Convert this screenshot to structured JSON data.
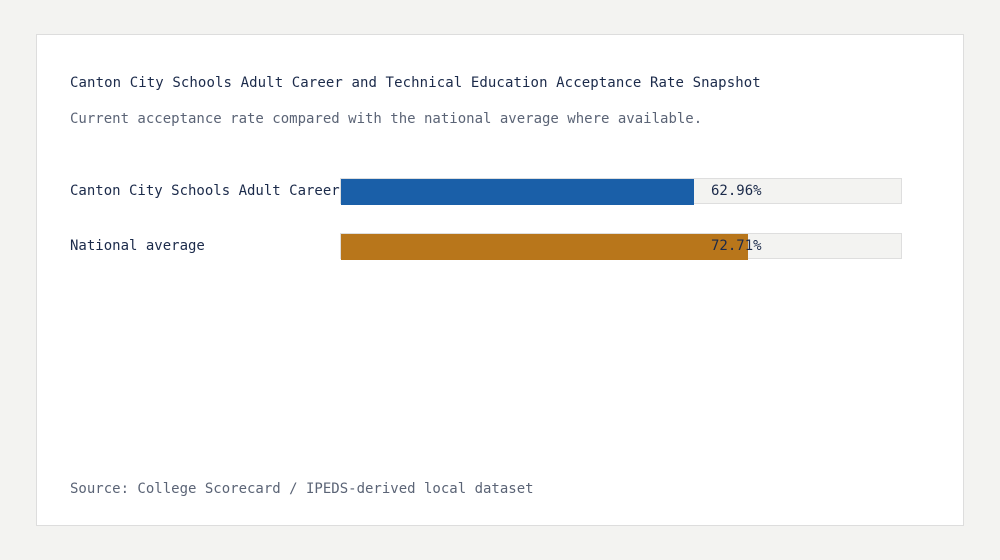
{
  "title": "Canton City Schools Adult Career and Technical Education Acceptance Rate Snapshot",
  "subtitle": "Current acceptance rate compared with the national average where available.",
  "source": "Source: College Scorecard / IPEDS-derived local dataset",
  "colors": {
    "school": "#1a5fa8",
    "national": "#b8761b",
    "track": "#f3f3f1"
  },
  "chart_data": {
    "type": "bar",
    "orientation": "horizontal",
    "unit": "%",
    "xlim": [
      0,
      100
    ],
    "categories": [
      "Canton City Schools Adult Career and Technical Education",
      "National average"
    ],
    "values": [
      62.96,
      72.71
    ],
    "value_labels": [
      "62.96%",
      "72.71%"
    ],
    "title": "Canton City Schools Adult Career and Technical Education Acceptance Rate Snapshot",
    "subtitle": "Current acceptance rate compared with the national average where available.",
    "legend": "none",
    "grid": false
  }
}
